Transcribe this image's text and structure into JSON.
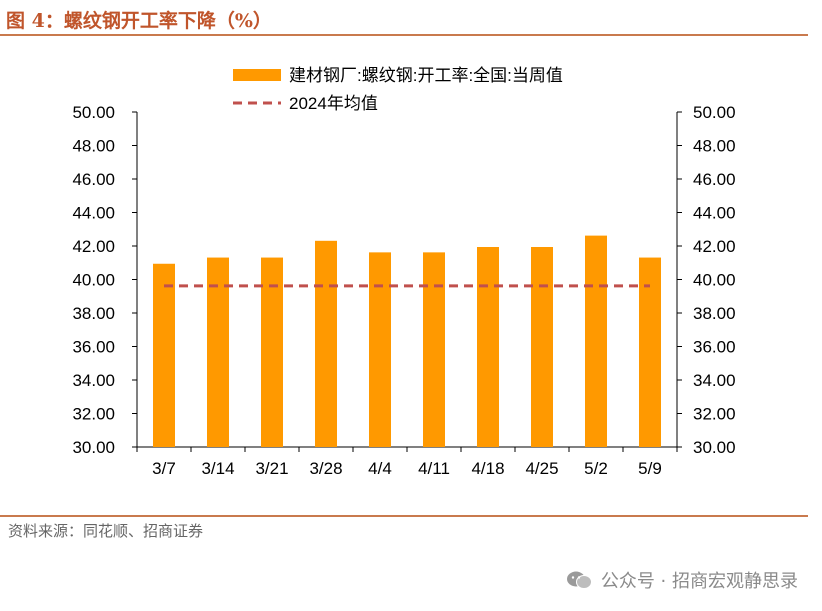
{
  "header": {
    "title": "图 4：螺纹钢开工率下降（%）"
  },
  "footer": {
    "source": "资料来源：同花顺、招商证券",
    "watermark": "公众号 · 招商宏观静思录"
  },
  "colors": {
    "bar": "#FF9900",
    "avg_line": "#C0504D",
    "accent": "#C0552B"
  },
  "chart_data": {
    "type": "bar",
    "categories": [
      "3/7",
      "3/14",
      "3/21",
      "3/28",
      "4/4",
      "4/11",
      "4/18",
      "4/25",
      "5/2",
      "5/9"
    ],
    "series": [
      {
        "name": "建材钢厂:螺纹钢:开工率:全国:当周值",
        "type": "bar",
        "values": [
          40.94,
          41.31,
          41.31,
          42.31,
          41.62,
          41.62,
          41.94,
          41.94,
          42.62,
          41.31
        ]
      },
      {
        "name": "2024年均值",
        "type": "line",
        "style": "dashed",
        "values": [
          39.62,
          39.62,
          39.62,
          39.62,
          39.62,
          39.62,
          39.62,
          39.62,
          39.62,
          39.62
        ]
      }
    ],
    "ylim": [
      30,
      50
    ],
    "yticks": [
      "30.00",
      "32.00",
      "34.00",
      "36.00",
      "38.00",
      "40.00",
      "42.00",
      "44.00",
      "46.00",
      "48.00",
      "50.00"
    ],
    "secondary_axis": true,
    "legend_position": "top-center",
    "grid": false
  }
}
